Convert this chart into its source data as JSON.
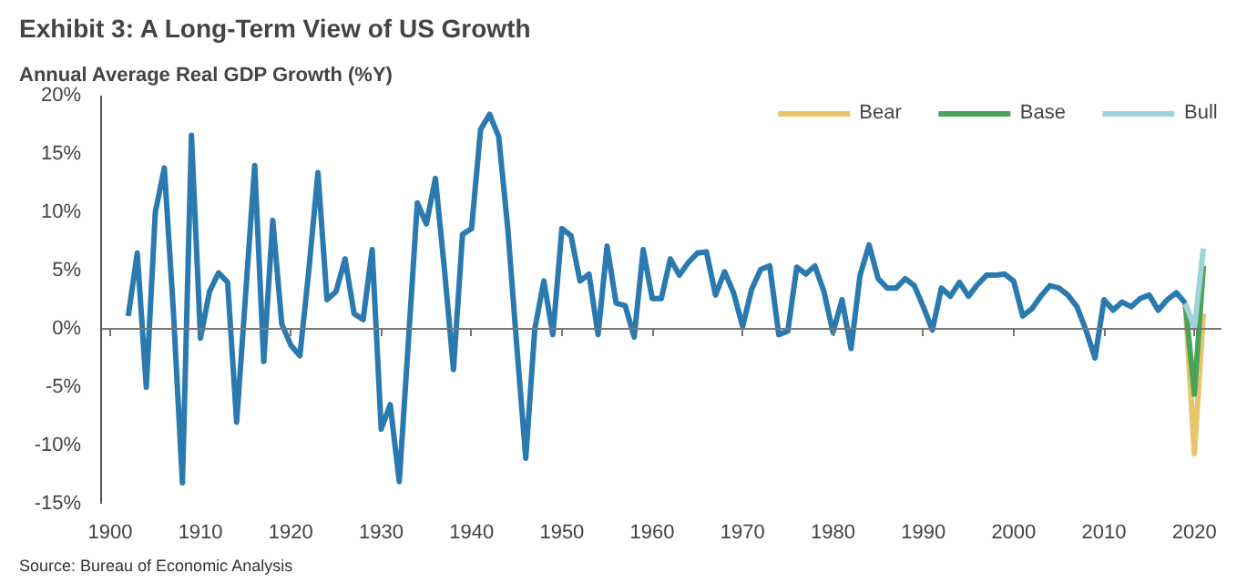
{
  "chart_data": {
    "type": "line",
    "title": "Exhibit 3:  A Long-Term View of US Growth",
    "ylabel": "Annual Average Real GDP Growth (%Y)",
    "annotations": [
      "Source: Bureau of Economic Analysis"
    ],
    "xlim": [
      1899,
      2023
    ],
    "xticks": [
      1900,
      1910,
      1920,
      1930,
      1940,
      1950,
      1960,
      1970,
      1980,
      1990,
      2000,
      2010,
      2020
    ],
    "ylim": [
      -15,
      20
    ],
    "yticks": [
      {
        "value": -15,
        "label": "-15%"
      },
      {
        "value": -10,
        "label": "-10%"
      },
      {
        "value": -5,
        "label": "-5%"
      },
      {
        "value": 0,
        "label": "0%"
      },
      {
        "value": 5,
        "label": "5%"
      },
      {
        "value": 10,
        "label": "10%"
      },
      {
        "value": 15,
        "label": "15%"
      },
      {
        "value": 20,
        "label": "20%"
      }
    ],
    "legend": "top right",
    "marker": "none",
    "line_style": "solid",
    "series": [
      {
        "color": "#2a7ab0",
        "x": [
          1902,
          1903,
          1904,
          1905,
          1906,
          1907,
          1908,
          1909,
          1910,
          1911,
          1912,
          1913,
          1914,
          1915,
          1916,
          1917,
          1918,
          1919,
          1920,
          1921,
          1922,
          1923,
          1924,
          1925,
          1926,
          1927,
          1928,
          1929,
          1930,
          1931,
          1932,
          1933,
          1934,
          1935,
          1936,
          1937,
          1938,
          1939,
          1940,
          1941,
          1942,
          1943,
          1944,
          1945,
          1946,
          1947,
          1948,
          1949,
          1950,
          1951,
          1952,
          1953,
          1954,
          1955,
          1956,
          1957,
          1958,
          1959,
          1960,
          1961,
          1962,
          1963,
          1964,
          1965,
          1966,
          1967,
          1968,
          1969,
          1970,
          1971,
          1972,
          1973,
          1974,
          1975,
          1976,
          1977,
          1978,
          1979,
          1980,
          1981,
          1982,
          1983,
          1984,
          1985,
          1986,
          1987,
          1988,
          1989,
          1990,
          1991,
          1992,
          1993,
          1994,
          1995,
          1996,
          1997,
          1998,
          1999,
          2000,
          2001,
          2002,
          2003,
          2004,
          2005,
          2006,
          2007,
          2008,
          2009,
          2010,
          2011,
          2012,
          2013,
          2014,
          2015,
          2016,
          2017,
          2018,
          2019
        ],
        "values": [
          1.1,
          6.5,
          -5,
          10,
          13.8,
          1.5,
          -13.2,
          16.6,
          -0.8,
          3.2,
          4.8,
          4.0,
          -8.0,
          3,
          14,
          -2.8,
          9.3,
          0.4,
          -1.4,
          -2.3,
          5.1,
          13.4,
          2.5,
          3.2,
          6.0,
          1.3,
          0.8,
          6.8,
          -8.6,
          -6.5,
          -13.1,
          -1.2,
          10.8,
          9.0,
          12.9,
          5.1,
          -3.5,
          8.1,
          8.6,
          17.1,
          18.4,
          16.5,
          8.7,
          -1.4,
          -11.1,
          0,
          4.1,
          -0.5,
          8.6,
          8.0,
          4.1,
          4.7,
          -0.5,
          7.1,
          2.2,
          2.0,
          -0.7,
          6.8,
          2.6,
          2.6,
          6.0,
          4.6,
          5.7,
          6.5,
          6.6,
          2.9,
          4.9,
          3.1,
          0.2,
          3.4,
          5.1,
          5.4,
          -0.5,
          -0.2,
          5.3,
          4.7,
          5.4,
          3.2,
          -0.3,
          2.5,
          -1.7,
          4.6,
          7.2,
          4.3,
          3.5,
          3.5,
          4.3,
          3.7,
          1.9,
          -0.1,
          3.5,
          2.8,
          4.0,
          2.8,
          3.8,
          4.6,
          4.6,
          4.7,
          4.1,
          1.1,
          1.7,
          2.8,
          3.7,
          3.5,
          2.9,
          1.9,
          -0.1,
          -2.5,
          2.5,
          1.6,
          2.3,
          1.9,
          2.6,
          2.9,
          1.6,
          2.5,
          3.1,
          2.2
        ]
      },
      {
        "name": "Bear",
        "color": "#e8c56b",
        "x": [
          2019,
          2020,
          2021
        ],
        "values": [
          2.2,
          -10.7,
          1.3
        ]
      },
      {
        "name": "Base",
        "color": "#4aa35a",
        "x": [
          2019,
          2020,
          2021
        ],
        "values": [
          2.2,
          -5.6,
          5.4
        ]
      },
      {
        "name": "Bull",
        "color": "#9fd3d8",
        "x": [
          2019,
          2020,
          2021
        ],
        "values": [
          2.2,
          0.1,
          6.9
        ]
      }
    ]
  }
}
